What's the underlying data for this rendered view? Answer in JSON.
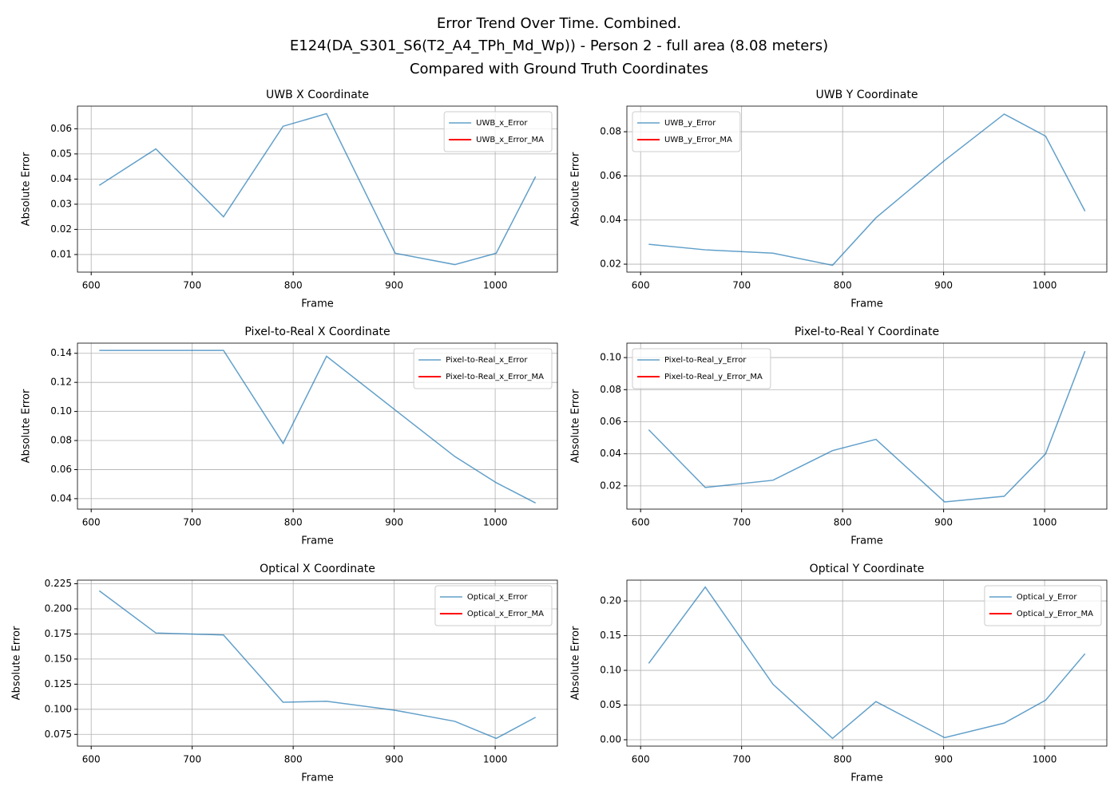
{
  "title": [
    "Error Trend Over Time. Combined.",
    "E124(DA_S301_S6(T2_A4_TPh_Md_Wp)) - Person 2 - full area (8.08 meters)",
    "Compared with Ground Truth Coordinates"
  ],
  "chart_data": [
    {
      "type": "line",
      "title": "UWB X Coordinate",
      "xlabel": "Frame",
      "ylabel": "Absolute Error",
      "x": [
        608,
        664,
        731,
        790,
        833,
        901,
        960,
        1001,
        1040
      ],
      "series": [
        {
          "name": "UWB_x_Error",
          "color": "#1f77b4",
          "values": [
            0.0375,
            0.052,
            0.025,
            0.061,
            0.066,
            0.0105,
            0.006,
            0.0105,
            0.041
          ]
        },
        {
          "name": "UWB_x_Error_MA",
          "color": "#ff0000",
          "values": [
            null,
            null,
            null,
            null,
            null,
            null,
            null,
            null,
            null
          ]
        }
      ],
      "xlim": [
        586.4,
        1061.6
      ],
      "ylim": [
        0.003,
        0.069
      ],
      "xticks": [
        600,
        700,
        800,
        900,
        1000
      ],
      "yticks": [
        0.01,
        0.02,
        0.03,
        0.04,
        0.05,
        0.06
      ],
      "grid": true,
      "legend": "upper right"
    },
    {
      "type": "line",
      "title": "UWB Y Coordinate",
      "xlabel": "Frame",
      "ylabel": "Absolute Error",
      "x": [
        608,
        664,
        731,
        790,
        833,
        901,
        960,
        1001,
        1040
      ],
      "series": [
        {
          "name": "UWB_y_Error",
          "color": "#1f77b4",
          "values": [
            0.029,
            0.0265,
            0.025,
            0.0195,
            0.041,
            0.067,
            0.088,
            0.078,
            0.044
          ]
        },
        {
          "name": "UWB_y_Error_MA",
          "color": "#ff0000",
          "values": [
            null,
            null,
            null,
            null,
            null,
            null,
            null,
            null,
            null
          ]
        }
      ],
      "xlim": [
        586.4,
        1061.6
      ],
      "ylim": [
        0.0164,
        0.0916
      ],
      "xticks": [
        600,
        700,
        800,
        900,
        1000
      ],
      "yticks": [
        0.02,
        0.04,
        0.06,
        0.08
      ],
      "grid": true,
      "legend": "upper left"
    },
    {
      "type": "line",
      "title": "Pixel-to-Real X Coordinate",
      "xlabel": "Frame",
      "ylabel": "Absolute Error",
      "x": [
        608,
        664,
        731,
        790,
        833,
        901,
        960,
        1001,
        1040
      ],
      "series": [
        {
          "name": "Pixel-to-Real_x_Error",
          "color": "#1f77b4",
          "values": [
            0.142,
            0.142,
            0.142,
            0.078,
            0.138,
            0.101,
            0.069,
            0.051,
            0.037
          ]
        },
        {
          "name": "Pixel-to-Real_x_Error_MA",
          "color": "#ff0000",
          "values": [
            null,
            null,
            null,
            null,
            null,
            null,
            null,
            null,
            null
          ]
        }
      ],
      "xlim": [
        586.4,
        1061.6
      ],
      "ylim": [
        0.0328,
        0.147
      ],
      "xticks": [
        600,
        700,
        800,
        900,
        1000
      ],
      "yticks": [
        0.04,
        0.06,
        0.08,
        {
          "value": 0.1,
          "label": "0.10"
        },
        0.12,
        0.14
      ],
      "grid": true,
      "legend": "upper right"
    },
    {
      "type": "line",
      "title": "Pixel-to-Real Y Coordinate",
      "xlabel": "Frame",
      "ylabel": "Absolute Error",
      "x": [
        608,
        664,
        731,
        790,
        833,
        901,
        960,
        1001,
        1040
      ],
      "series": [
        {
          "name": "Pixel-to-Real_y_Error",
          "color": "#1f77b4",
          "values": [
            0.055,
            0.019,
            0.0235,
            0.042,
            0.049,
            0.01,
            0.0135,
            0.04,
            0.104
          ]
        },
        {
          "name": "Pixel-to-Real_y_Error_MA",
          "color": "#ff0000",
          "values": [
            null,
            null,
            null,
            null,
            null,
            null,
            null,
            null,
            null
          ]
        }
      ],
      "xlim": [
        586.4,
        1061.6
      ],
      "ylim": [
        0.0055,
        0.109
      ],
      "xticks": [
        600,
        700,
        800,
        900,
        1000
      ],
      "yticks": [
        0.02,
        0.04,
        0.06,
        0.08,
        {
          "value": 0.1,
          "label": "0.10"
        }
      ],
      "grid": true,
      "legend": "upper left"
    },
    {
      "type": "line",
      "title": "Optical X Coordinate",
      "xlabel": "Frame",
      "ylabel": "Absolute Error",
      "x": [
        608,
        664,
        731,
        790,
        833,
        901,
        960,
        1001,
        1040
      ],
      "series": [
        {
          "name": "Optical_x_Error",
          "color": "#1f77b4",
          "values": [
            0.218,
            0.176,
            0.174,
            0.107,
            0.108,
            0.099,
            0.088,
            0.071,
            0.092
          ]
        },
        {
          "name": "Optical_x_Error_MA",
          "color": "#ff0000",
          "values": [
            null,
            null,
            null,
            null,
            null,
            null,
            null,
            null,
            null
          ]
        }
      ],
      "xlim": [
        586.4,
        1061.6
      ],
      "ylim": [
        0.0633,
        0.2286
      ],
      "xticks": [
        600,
        700,
        800,
        900,
        1000
      ],
      "yticks": [
        0.075,
        {
          "value": 0.1,
          "label": "0.100"
        },
        0.125,
        {
          "value": 0.15,
          "label": "0.150"
        },
        0.175,
        {
          "value": 0.2,
          "label": "0.200"
        },
        0.225
      ],
      "grid": true,
      "legend": "upper right"
    },
    {
      "type": "line",
      "title": "Optical Y Coordinate",
      "xlabel": "Frame",
      "ylabel": "Absolute Error",
      "x": [
        608,
        664,
        731,
        790,
        833,
        901,
        960,
        1001,
        1040
      ],
      "series": [
        {
          "name": "Optical_y_Error",
          "color": "#1f77b4",
          "values": [
            0.11,
            0.22,
            0.08,
            0.002,
            0.055,
            0.003,
            0.024,
            0.057,
            0.124
          ]
        },
        {
          "name": "Optical_y_Error_MA",
          "color": "#ff0000",
          "values": [
            null,
            null,
            null,
            null,
            null,
            null,
            null,
            null,
            null
          ]
        }
      ],
      "xlim": [
        586.4,
        1061.6
      ],
      "ylim": [
        -0.0092,
        0.23
      ],
      "xticks": [
        600,
        700,
        800,
        900,
        1000
      ],
      "yticks": [
        {
          "value": 0,
          "label": "0.00"
        },
        {
          "value": 0.05,
          "label": "0.05"
        },
        {
          "value": 0.1,
          "label": "0.10"
        },
        {
          "value": 0.15,
          "label": "0.15"
        },
        {
          "value": 0.2,
          "label": "0.20"
        }
      ],
      "grid": true,
      "legend": "upper right"
    }
  ]
}
